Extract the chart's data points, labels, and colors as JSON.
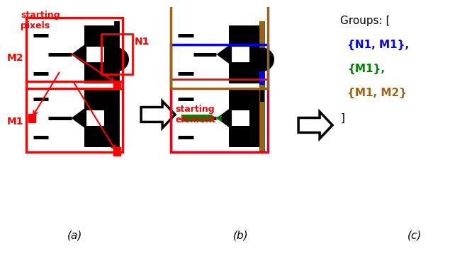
{
  "fig_width": 6.24,
  "fig_height": 3.42,
  "bg_color": "#ffffff",
  "black": "#000000",
  "red": "#ff0000",
  "blue": "#0000ff",
  "green": "#008000",
  "brown": "#996515",
  "panel_a_label": "(a)",
  "panel_b_label": "(b)",
  "panel_c_label": "(c)",
  "groups_text": "Groups: [",
  "group1_text": "{N1, M1},",
  "group2_text": "{M1},",
  "group3_text": "{M1, M2}",
  "close_bracket": "]",
  "starting_pixels_text": "starting\npixels",
  "starting_element_text": "starting\nelement",
  "N1_label": "N1",
  "M1_label": "M1",
  "M2_label": "M2"
}
